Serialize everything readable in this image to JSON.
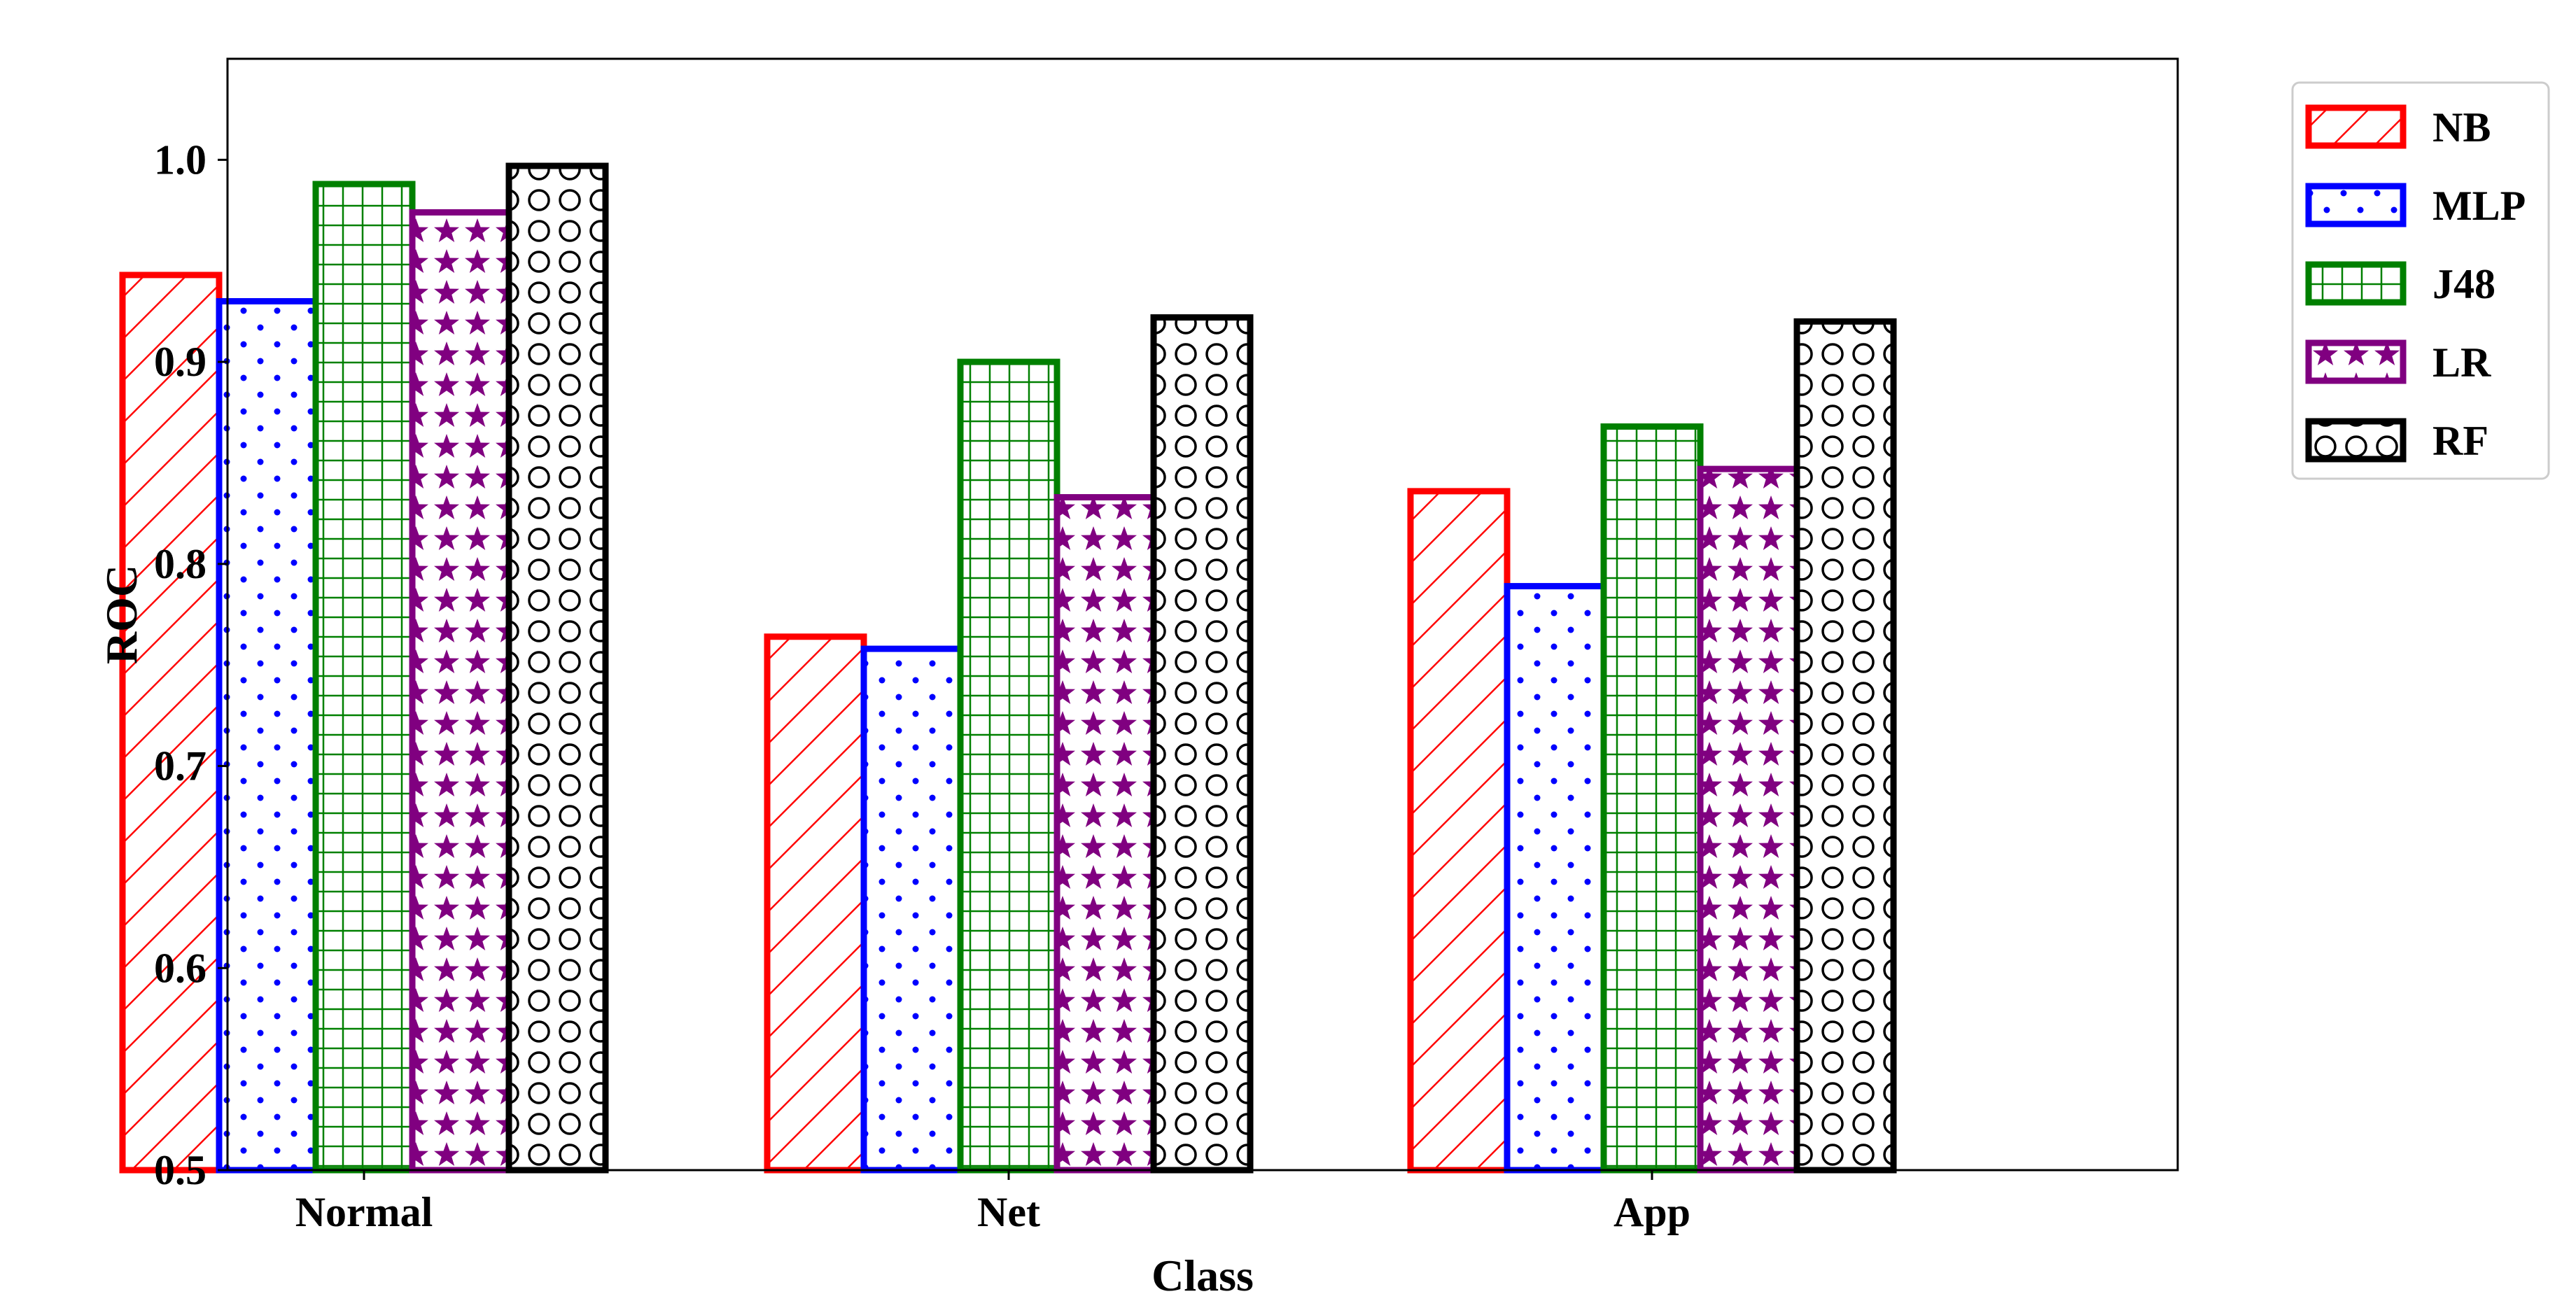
{
  "chart_data": {
    "type": "bar",
    "xlabel": "Class",
    "ylabel": "ROC",
    "categories": [
      "Normal",
      "Net",
      "App"
    ],
    "ylim": [
      0.5,
      1.05
    ],
    "yticks": [
      0.5,
      0.6,
      0.7,
      0.8,
      0.9,
      1.0
    ],
    "ytick_labels": [
      "0.5",
      "0.6",
      "0.7",
      "0.8",
      "0.9",
      "1.0"
    ],
    "grid": false,
    "legend_position": "outside-top-right",
    "series": [
      {
        "name": "NB",
        "values": [
          0.943,
          0.764,
          0.836
        ],
        "color": "#ff0000",
        "pattern": "diagonal-hatch"
      },
      {
        "name": "MLP",
        "values": [
          0.93,
          0.758,
          0.789
        ],
        "color": "#0000ff",
        "pattern": "dots"
      },
      {
        "name": "J48",
        "values": [
          0.988,
          0.9,
          0.868
        ],
        "color": "#008000",
        "pattern": "grid"
      },
      {
        "name": "LR",
        "values": [
          0.974,
          0.833,
          0.847
        ],
        "color": "#800080",
        "pattern": "stars"
      },
      {
        "name": "RF",
        "values": [
          0.997,
          0.922,
          0.92
        ],
        "color": "#000000",
        "pattern": "circles"
      }
    ]
  }
}
